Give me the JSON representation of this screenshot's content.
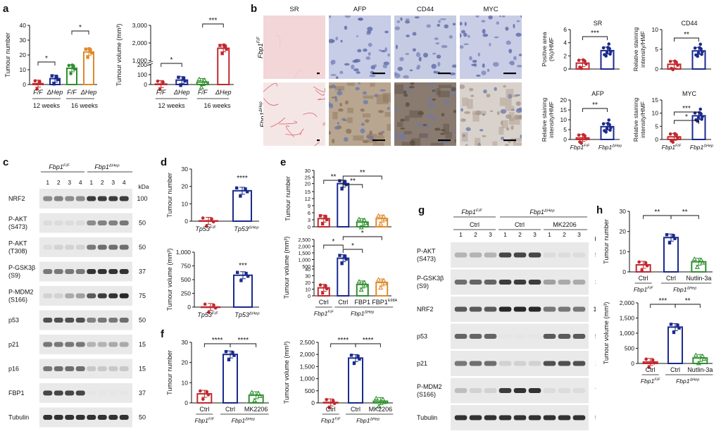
{
  "panels": {
    "a": "a",
    "b": "b",
    "c": "c",
    "d": "d",
    "e": "e",
    "f": "f",
    "g": "g",
    "h": "h"
  },
  "colors": {
    "ff": "#c0282d",
    "dhep": "#1a2a8c",
    "green": "#2f8f2f",
    "orange": "#e08a2a"
  },
  "chart_data": [
    {
      "id": "a-number",
      "type": "bar",
      "categories": [
        "F/F 12w",
        "ΔHep 12w",
        "F/F 16w",
        "ΔHep 16w"
      ],
      "tick_labels": [
        "F/F",
        "ΔHep",
        "F/F",
        "ΔHep"
      ],
      "group_labels": [
        "12 weeks",
        "16 weeks"
      ],
      "values": [
        0.6,
        4,
        11,
        22
      ],
      "ylabel": "Tumour number",
      "ylim": [
        0,
        40
      ],
      "yticks": [
        "0",
        "10",
        "20",
        "30",
        "40"
      ],
      "sig": [
        "*",
        "*"
      ]
    },
    {
      "id": "a-volume",
      "type": "bar",
      "categories": [
        "F/F 12w",
        "ΔHep 12w",
        "F/F 16w",
        "ΔHep 16w"
      ],
      "tick_labels": [
        "F/F",
        "ΔHep",
        "F/F",
        "ΔHep"
      ],
      "group_labels": [
        "12 weeks",
        "16 weeks"
      ],
      "values": [
        5,
        45,
        25,
        1700
      ],
      "ylabel": "Tumour volume (mm³)",
      "yticks": [
        "0",
        "100",
        "200",
        "1,000",
        "2,000",
        "3,000"
      ],
      "sig": [
        "*",
        "***"
      ]
    },
    {
      "id": "b-sr",
      "type": "bar",
      "categories": [
        "Fbp1F/F",
        "Fbp1ΔHep"
      ],
      "values": [
        0.9,
        2.8
      ],
      "title": "SR",
      "ylabel": "Positive area (%)/HMF",
      "ylim": [
        0,
        6
      ],
      "yticks": [
        "0",
        "2",
        "4",
        "6"
      ],
      "sig": [
        "***"
      ]
    },
    {
      "id": "b-cd44",
      "type": "bar",
      "categories": [
        "Fbp1F/F",
        "Fbp1ΔHep"
      ],
      "values": [
        1.2,
        4.6
      ],
      "title": "CD44",
      "ylabel": "Relative staining intensity/HMF",
      "ylim": [
        0,
        10
      ],
      "yticks": [
        "0",
        "5",
        "10"
      ],
      "sig": [
        "**"
      ]
    },
    {
      "id": "b-afp",
      "type": "bar",
      "categories": [
        "Fbp1F/F",
        "Fbp1ΔHep"
      ],
      "values": [
        0.8,
        6.5
      ],
      "title": "AFP",
      "ylabel": "Relative staining intensity/HMF",
      "ylim": [
        0,
        20
      ],
      "yticks": [
        "0",
        "5",
        "10",
        "15",
        "20"
      ],
      "sig": [
        "**"
      ]
    },
    {
      "id": "b-myc",
      "type": "bar",
      "categories": [
        "Fbp1F/F",
        "Fbp1ΔHep"
      ],
      "values": [
        1,
        9
      ],
      "title": "MYC",
      "ylabel": "Relative staining intensity/HMF",
      "ylim": [
        0,
        15
      ],
      "yticks": [
        "0",
        "5",
        "10",
        "15"
      ],
      "sig": [
        "***",
        "*"
      ]
    },
    {
      "id": "d-number",
      "type": "bar",
      "categories": [
        "Tp53F/F",
        "Tp53ΔHep"
      ],
      "values": [
        0.2,
        17.5
      ],
      "ylabel": "Tumour number",
      "ylim": [
        0,
        30
      ],
      "yticks": [
        "0",
        "10",
        "20",
        "30"
      ],
      "sig": [
        "****"
      ]
    },
    {
      "id": "d-volume",
      "type": "bar",
      "categories": [
        "Tp53F/F",
        "Tp53ΔHep"
      ],
      "values": [
        2,
        580
      ],
      "ylabel": "Tumour volume (mm³)",
      "ylim": [
        0,
        1000
      ],
      "yticks": [
        "0",
        "250",
        "500",
        "750",
        "1,000"
      ],
      "sig": [
        "***"
      ]
    },
    {
      "id": "e-number",
      "type": "bar",
      "categories": [
        "Ctrl F/F",
        "Ctrl ΔHep",
        "FBP1",
        "FBP1 E98A"
      ],
      "values": [
        3.5,
        20,
        2,
        3.5
      ],
      "ylabel": "Tumour number",
      "ylim": [
        0,
        30
      ],
      "yticks": [
        "0",
        "3",
        "6",
        "9",
        "12",
        "15",
        "20",
        "25",
        "30"
      ],
      "sig": [
        "**",
        "**",
        "**"
      ]
    },
    {
      "id": "e-volume",
      "type": "bar",
      "categories": [
        "Ctrl F/F",
        "Ctrl ΔHep",
        "FBP1",
        "FBP1 E98A"
      ],
      "values": [
        12,
        1100,
        17,
        20
      ],
      "ylabel": "Tumour volume (mm³)",
      "yticks": [
        "0",
        "10",
        "20",
        "30",
        "40",
        "500",
        "1,000",
        "1,500",
        "2,000",
        "2,500"
      ],
      "sig": [
        "*",
        "*",
        "*"
      ]
    },
    {
      "id": "f-number",
      "type": "bar",
      "categories": [
        "Ctrl F/F",
        "Ctrl ΔHep",
        "MK2206"
      ],
      "values": [
        4.5,
        24,
        3.8
      ],
      "ylabel": "Tumour number",
      "ylim": [
        0,
        30
      ],
      "yticks": [
        "0",
        "10",
        "20",
        "30"
      ],
      "sig": [
        "****",
        "****"
      ]
    },
    {
      "id": "f-volume",
      "type": "bar",
      "categories": [
        "Ctrl F/F",
        "Ctrl ΔHep",
        "MK2206"
      ],
      "values": [
        20,
        1850,
        70
      ],
      "ylabel": "Tumour volume (mm³)",
      "ylim": [
        0,
        2500
      ],
      "yticks": [
        "0",
        "500",
        "1,000",
        "1,500",
        "2,000",
        "2,500"
      ],
      "sig": [
        "****",
        "****"
      ]
    },
    {
      "id": "h-number",
      "type": "bar",
      "categories": [
        "Ctrl F/F",
        "Ctrl ΔHep",
        "Nutlin-3a"
      ],
      "values": [
        3.5,
        17,
        5
      ],
      "ylabel": "Tumour number",
      "ylim": [
        0,
        30
      ],
      "yticks": [
        "0",
        "10",
        "20",
        "30"
      ],
      "sig": [
        "**",
        "**"
      ]
    },
    {
      "id": "h-volume",
      "type": "bar",
      "categories": [
        "Ctrl F/F",
        "Ctrl ΔHep",
        "Nutlin-3a"
      ],
      "values": [
        50,
        1200,
        180
      ],
      "ylabel": "Tumour volume (mm³)",
      "ylim": [
        0,
        2000
      ],
      "yticks": [
        "0",
        "500",
        "1,000",
        "1,500",
        "2,000"
      ],
      "sig": [
        "***",
        "**"
      ]
    }
  ],
  "text": {
    "b_cols": [
      "SR",
      "AFP",
      "CD44",
      "MYC"
    ],
    "b_rows": [
      "Fbp1",
      "Fbp1"
    ],
    "b_row_sups": [
      "F/F",
      "ΔHep"
    ],
    "geno_ff": "Fbp1",
    "geno_ff_sup": "F/F",
    "geno_dhep": "Fbp1",
    "geno_dhep_sup": "ΔHep",
    "tp53": "Tp53",
    "ctrl": "Ctrl",
    "fbp1": "FBP1",
    "fbp1e": "FBP1",
    "fbp1e_sup": "E98A",
    "mk2206": "MK2206",
    "nutlin": "Nutlin-3a",
    "kda": "kDa",
    "c_lanes": [
      "1",
      "2",
      "3",
      "4",
      "1",
      "2",
      "3",
      "4"
    ],
    "g_lanes": [
      "1",
      "2",
      "3",
      "1",
      "2",
      "3",
      "1",
      "2",
      "3"
    ],
    "c_bands": [
      {
        "name": "NRF2",
        "kda": "100"
      },
      {
        "name": "P-AKT (S473)",
        "kda": "50"
      },
      {
        "name": "P-AKT (T308)",
        "kda": "50"
      },
      {
        "name": "P-GSK3β (S9)",
        "kda": "37"
      },
      {
        "name": "P-MDM2 (S166)",
        "kda": "75"
      },
      {
        "name": "p53",
        "kda": "50"
      },
      {
        "name": "p21",
        "kda": "15"
      },
      {
        "name": "p16",
        "kda": "15"
      },
      {
        "name": "FBP1",
        "kda": "37"
      },
      {
        "name": "Tubulin",
        "kda": "50"
      }
    ],
    "g_bands": [
      {
        "name": "P-AKT (S473)",
        "kda": "50"
      },
      {
        "name": "P-GSK3β (S9)",
        "kda": "37"
      },
      {
        "name": "NRF2",
        "kda": "100"
      },
      {
        "name": "p53",
        "kda": "50"
      },
      {
        "name": "p21",
        "kda": "15"
      },
      {
        "name": "P-MDM2 (S166)",
        "kda": "75"
      },
      {
        "name": "Tubulin",
        "kda": "50"
      }
    ]
  }
}
